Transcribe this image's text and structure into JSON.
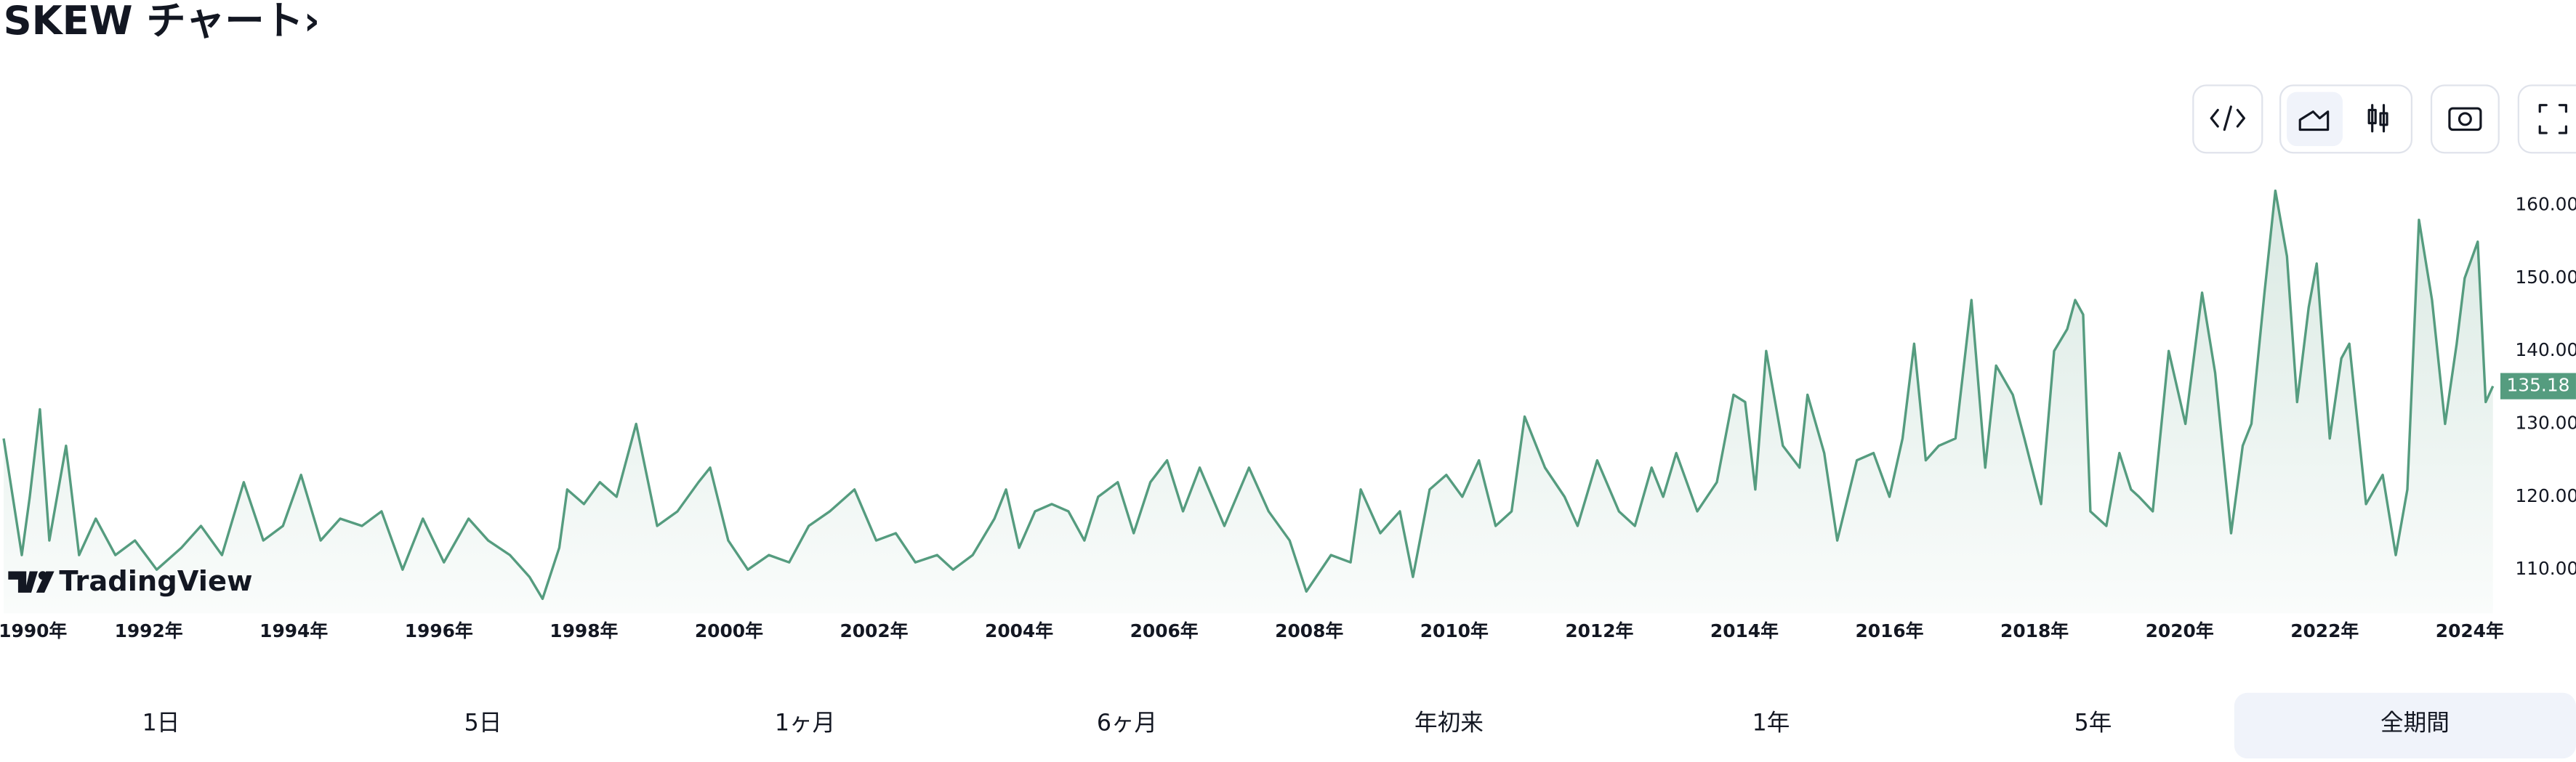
{
  "header": {
    "title": "SKEW チャート›"
  },
  "chart_data": {
    "type": "area",
    "color": "#559c7f",
    "grid": false,
    "watermark": "TradingView",
    "last_value_label": "135.18",
    "xlim": [
      1989.95,
      2024.4
    ],
    "ylim": [
      104,
      166
    ],
    "xticks": [
      {
        "value": 1990,
        "label": "1990年"
      },
      {
        "value": 1992,
        "label": "1992年"
      },
      {
        "value": 1994,
        "label": "1994年"
      },
      {
        "value": 1996,
        "label": "1996年"
      },
      {
        "value": 1998,
        "label": "1998年"
      },
      {
        "value": 2000,
        "label": "2000年"
      },
      {
        "value": 2002,
        "label": "2002年"
      },
      {
        "value": 2004,
        "label": "2004年"
      },
      {
        "value": 2006,
        "label": "2006年"
      },
      {
        "value": 2008,
        "label": "2008年"
      },
      {
        "value": 2010,
        "label": "2010年"
      },
      {
        "value": 2012,
        "label": "2012年"
      },
      {
        "value": 2014,
        "label": "2014年"
      },
      {
        "value": 2016,
        "label": "2016年"
      },
      {
        "value": 2018,
        "label": "2018年"
      },
      {
        "value": 2020,
        "label": "2020年"
      },
      {
        "value": 2022,
        "label": "2022年"
      },
      {
        "value": 2024,
        "label": "2024年"
      }
    ],
    "yticks": [
      {
        "value": 110,
        "label": "110.00"
      },
      {
        "value": 120,
        "label": "120.00"
      },
      {
        "value": 130,
        "label": "130.00"
      },
      {
        "value": 140,
        "label": "140.00"
      },
      {
        "value": 150,
        "label": "150.00"
      },
      {
        "value": 160,
        "label": "160.00"
      }
    ],
    "x": [
      1990.0,
      1990.25,
      1990.36,
      1990.5,
      1990.63,
      1990.86,
      1991.04,
      1991.27,
      1991.54,
      1991.81,
      1992.11,
      1992.45,
      1992.72,
      1993.01,
      1993.31,
      1993.58,
      1993.85,
      1994.1,
      1994.37,
      1994.64,
      1994.94,
      1995.21,
      1995.5,
      1995.78,
      1996.07,
      1996.41,
      1996.68,
      1996.98,
      1997.25,
      1997.43,
      1997.66,
      1997.77,
      1998.0,
      1998.22,
      1998.45,
      1998.72,
      1999.01,
      1999.29,
      1999.58,
      1999.74,
      1999.99,
      2000.26,
      2000.55,
      2000.83,
      2001.1,
      2001.39,
      2001.73,
      2002.03,
      2002.3,
      2002.57,
      2002.87,
      2003.09,
      2003.36,
      2003.66,
      2003.82,
      2004.0,
      2004.22,
      2004.45,
      2004.68,
      2004.9,
      2005.09,
      2005.36,
      2005.58,
      2005.81,
      2006.04,
      2006.26,
      2006.49,
      2006.83,
      2007.17,
      2007.44,
      2007.73,
      2007.96,
      2008.3,
      2008.57,
      2008.71,
      2008.98,
      2009.25,
      2009.43,
      2009.66,
      2009.89,
      2010.11,
      2010.34,
      2010.57,
      2010.79,
      2010.97,
      2011.25,
      2011.52,
      2011.7,
      2011.97,
      2012.27,
      2012.49,
      2012.72,
      2012.88,
      2013.06,
      2013.35,
      2013.62,
      2013.85,
      2014.01,
      2014.15,
      2014.3,
      2014.53,
      2014.76,
      2014.87,
      2015.1,
      2015.28,
      2015.55,
      2015.78,
      2016.0,
      2016.18,
      2016.34,
      2016.5,
      2016.68,
      2016.91,
      2017.13,
      2017.32,
      2017.47,
      2017.7,
      2017.86,
      2018.09,
      2018.27,
      2018.45,
      2018.56,
      2018.67,
      2018.77,
      2018.99,
      2019.17,
      2019.33,
      2019.44,
      2019.63,
      2019.85,
      2020.08,
      2020.31,
      2020.49,
      2020.71,
      2020.87,
      2020.99,
      2021.17,
      2021.32,
      2021.48,
      2021.62,
      2021.78,
      2021.89,
      2022.07,
      2022.23,
      2022.34,
      2022.57,
      2022.8,
      2022.98,
      2023.14,
      2023.3,
      2023.48,
      2023.66,
      2023.82,
      2023.93,
      2024.11,
      2024.22,
      2024.32
    ],
    "values": [
      128,
      112,
      120,
      132,
      114,
      127,
      112,
      117,
      112,
      114,
      110,
      113,
      116,
      112,
      122,
      114,
      116,
      123,
      114,
      117,
      116,
      118,
      110,
      117,
      111,
      117,
      114,
      112,
      109,
      106,
      113,
      121,
      119,
      122,
      120,
      130,
      116,
      118,
      122,
      124,
      114,
      110,
      112,
      111,
      116,
      118,
      121,
      114,
      115,
      111,
      112,
      110,
      112,
      117,
      121,
      113,
      118,
      119,
      118,
      114,
      120,
      122,
      115,
      122,
      125,
      118,
      124,
      116,
      124,
      118,
      114,
      107,
      112,
      111,
      121,
      115,
      118,
      109,
      121,
      123,
      120,
      125,
      116,
      118,
      131,
      124,
      120,
      116,
      125,
      118,
      116,
      124,
      120,
      126,
      118,
      122,
      134,
      133,
      121,
      140,
      127,
      124,
      134,
      126,
      114,
      125,
      126,
      120,
      128,
      141,
      125,
      127,
      128,
      147,
      124,
      138,
      134,
      128,
      119,
      140,
      143,
      147,
      145,
      118,
      116,
      126,
      121,
      120,
      118,
      140,
      130,
      148,
      137,
      115,
      127,
      130,
      148,
      162,
      153,
      133,
      146,
      152,
      128,
      139,
      141,
      119,
      123,
      112,
      121,
      158,
      147,
      130,
      141,
      150,
      155,
      133,
      135.18
    ]
  },
  "range_tabs": {
    "items": [
      "1日",
      "5日",
      "1ヶ月",
      "6ヶ月",
      "年初来",
      "1年",
      "5年",
      "全期間"
    ],
    "active": 7
  }
}
